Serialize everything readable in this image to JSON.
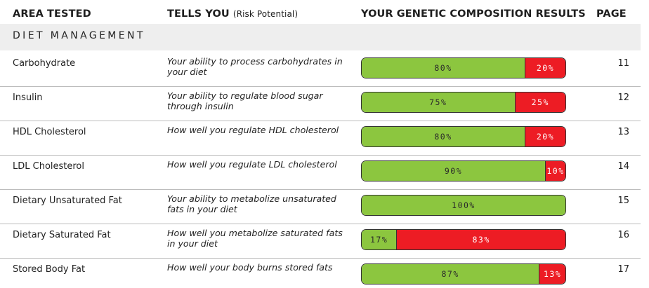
{
  "headers": {
    "area": "AREA TESTED",
    "tells": "TELLS YOU",
    "tells_sub": "(Risk Potential)",
    "results": "YOUR GENETIC COMPOSITION RESULTS",
    "page": "PAGE"
  },
  "section": {
    "title": "DIET MANAGEMENT"
  },
  "colors": {
    "good": "#8cc63f",
    "risk": "#ed1c24"
  },
  "rows": [
    {
      "area": "Carbohydrate",
      "tells": "Your ability to process carbohydrates in your diet",
      "good": 80,
      "risk": 20,
      "good_label": "80%",
      "risk_label": "20%",
      "page": "11"
    },
    {
      "area": "Insulin",
      "tells": "Your ability to regulate blood sugar through insulin",
      "good": 75,
      "risk": 25,
      "good_label": "75%",
      "risk_label": "25%",
      "page": "12"
    },
    {
      "area": "HDL Cholesterol",
      "tells": "How well you regulate HDL cholesterol",
      "good": 80,
      "risk": 20,
      "good_label": "80%",
      "risk_label": "20%",
      "page": "13"
    },
    {
      "area": "LDL Cholesterol",
      "tells": "How well you regulate LDL cholesterol",
      "good": 90,
      "risk": 10,
      "good_label": "90%",
      "risk_label": "10%",
      "page": "14"
    },
    {
      "area": "Dietary Unsaturated Fat",
      "tells": "Your ability to metabolize unsaturated fats in your diet",
      "good": 100,
      "risk": 0,
      "good_label": "100%",
      "risk_label": "",
      "page": "15"
    },
    {
      "area": "Dietary Saturated Fat",
      "tells": "How well you metabolize saturated fats in your diet",
      "good": 17,
      "risk": 83,
      "good_label": "17%",
      "risk_label": "83%",
      "page": "16"
    },
    {
      "area": "Stored Body Fat",
      "tells": "How well your body burns stored fats",
      "good": 87,
      "risk": 13,
      "good_label": "87%",
      "risk_label": "13%",
      "page": "17"
    }
  ]
}
